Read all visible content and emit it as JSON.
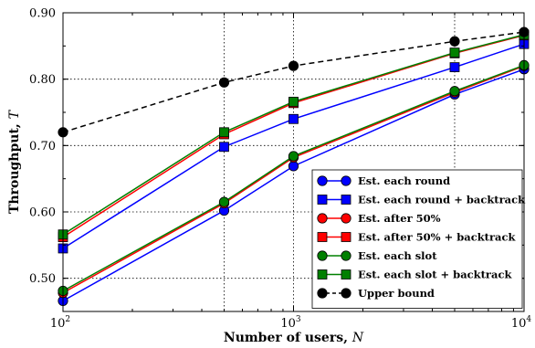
{
  "chart_data": {
    "type": "line",
    "xlabel": "Number of users,",
    "xlabel_var": "N",
    "ylabel": "Throughput,",
    "ylabel_var": "T",
    "x_scale": "log",
    "xlim": [
      100,
      10000
    ],
    "ylim": [
      0.45,
      0.9
    ],
    "grid": true,
    "legend_position": "lower-right",
    "x": [
      100,
      500,
      1000,
      5000,
      10000
    ],
    "x_ticks": [
      {
        "value": 100,
        "base": "10",
        "exp": "2"
      },
      {
        "value": 1000,
        "base": "10",
        "exp": "3"
      },
      {
        "value": 10000,
        "base": "10",
        "exp": "4"
      }
    ],
    "y_ticks": [
      {
        "value": 0.5,
        "label": "0.50"
      },
      {
        "value": 0.6,
        "label": "0.60"
      },
      {
        "value": 0.7,
        "label": "0.70"
      },
      {
        "value": 0.8,
        "label": "0.80"
      },
      {
        "value": 0.9,
        "label": "0.90"
      }
    ],
    "series": [
      {
        "name": "Est. each round",
        "color": "#0000ff",
        "marker": "circle",
        "dashed": false,
        "values": [
          0.466,
          0.602,
          0.669,
          0.777,
          0.815
        ]
      },
      {
        "name": "Est. each round + backtrack",
        "color": "#0000ff",
        "marker": "square",
        "dashed": false,
        "values": [
          0.545,
          0.698,
          0.74,
          0.818,
          0.853
        ]
      },
      {
        "name": "Est. after 50%",
        "color": "#ff0000",
        "marker": "circle",
        "dashed": false,
        "values": [
          0.478,
          0.613,
          0.682,
          0.78,
          0.82
        ]
      },
      {
        "name": "Est. after 50% + backtrack",
        "color": "#ff0000",
        "marker": "square",
        "dashed": false,
        "values": [
          0.562,
          0.717,
          0.764,
          0.839,
          0.866
        ]
      },
      {
        "name": "Est. each slot",
        "color": "#008000",
        "marker": "circle",
        "dashed": false,
        "values": [
          0.481,
          0.615,
          0.684,
          0.782,
          0.821
        ]
      },
      {
        "name": "Est. each slot + backtrack",
        "color": "#008000",
        "marker": "square",
        "dashed": false,
        "values": [
          0.566,
          0.72,
          0.766,
          0.84,
          0.867
        ]
      },
      {
        "name": "Upper bound",
        "color": "#000000",
        "marker": "circle",
        "dashed": true,
        "values": [
          0.72,
          0.795,
          0.82,
          0.857,
          0.871
        ]
      }
    ]
  }
}
